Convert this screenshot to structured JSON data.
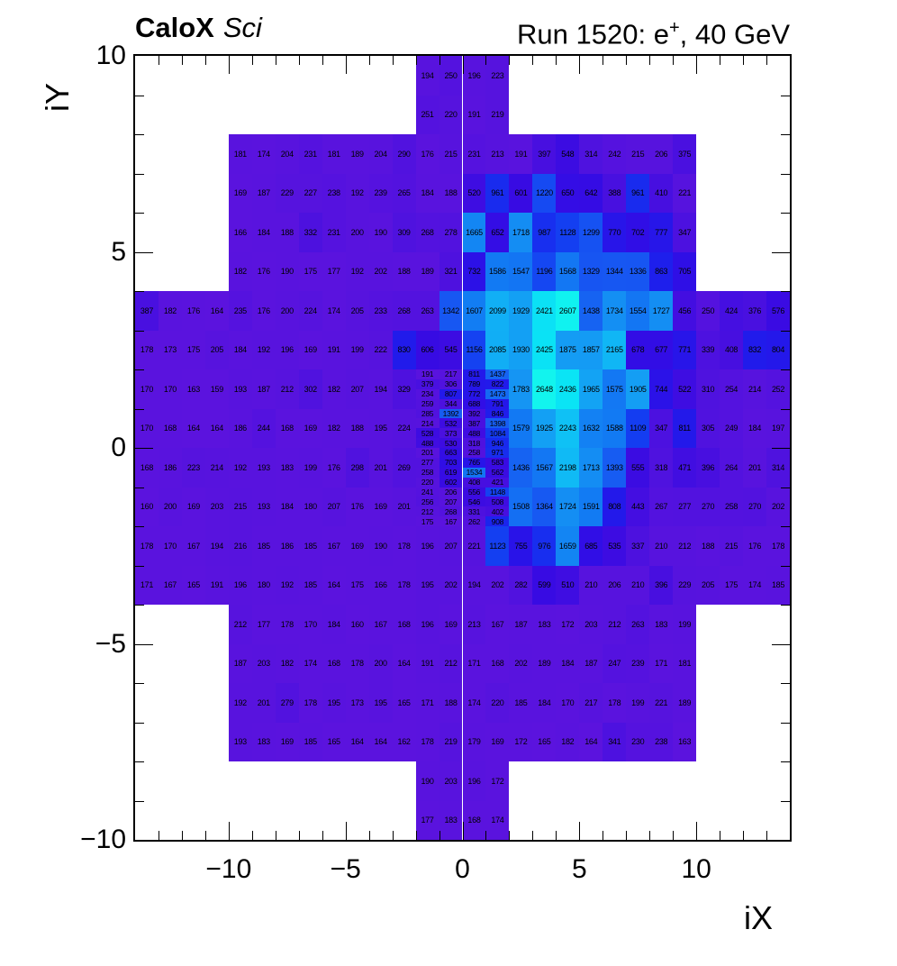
{
  "header": {
    "left_bold": "CaloX",
    "left_italic": "Sci",
    "run_prefix": "Run 1520: e",
    "run_sup": "+",
    "run_suffix": ", 40 GeV"
  },
  "axes": {
    "x_title": "iX",
    "y_title": "iY",
    "x_major": [
      {
        "v": -10,
        "label": "−10"
      },
      {
        "v": -5,
        "label": "−5"
      },
      {
        "v": 0,
        "label": "0"
      },
      {
        "v": 5,
        "label": "5"
      },
      {
        "v": 10,
        "label": "10"
      }
    ],
    "y_major": [
      {
        "v": 10,
        "label": "10"
      },
      {
        "v": 5,
        "label": "5"
      },
      {
        "v": 0,
        "label": "0"
      },
      {
        "v": -5,
        "label": "−5"
      },
      {
        "v": -10,
        "label": "−10"
      }
    ]
  },
  "chart_data": {
    "type": "heatmap",
    "title": "Run 1520: e+, 40 GeV",
    "subtitle": "CaloX Sci",
    "xlabel": "iX",
    "ylabel": "iY",
    "xlim": [
      -14,
      14
    ],
    "ylim": [
      -10,
      10
    ],
    "zmin": 159,
    "zmax": 2648,
    "grid": false,
    "legend": "none",
    "palette": [
      [
        0.0,
        "#5B13DE"
      ],
      [
        0.057,
        "#5012DF"
      ],
      [
        0.117,
        "#430EE1"
      ],
      [
        0.177,
        "#380BE3"
      ],
      [
        0.217,
        "#300EE6"
      ],
      [
        0.258,
        "#2418EA"
      ],
      [
        0.298,
        "#1B23ED"
      ],
      [
        0.338,
        "#1731EF"
      ],
      [
        0.378,
        "#143CF1"
      ],
      [
        0.438,
        "#164DF2"
      ],
      [
        0.499,
        "#175DF2"
      ],
      [
        0.539,
        "#146EF3"
      ],
      [
        0.579,
        "#127CF3"
      ],
      [
        0.619,
        "#148BF3"
      ],
      [
        0.659,
        "#1597F3"
      ],
      [
        0.699,
        "#149EF4"
      ],
      [
        0.74,
        "#12A6F4"
      ],
      [
        0.78,
        "#11AFF5"
      ],
      [
        0.82,
        "#10BAF5"
      ],
      [
        0.86,
        "#0DCBF5"
      ],
      [
        0.9,
        "#0BDEF5"
      ],
      [
        0.94,
        "#09EDF5"
      ],
      [
        1.0,
        "#12F4EE"
      ]
    ],
    "coarse_rows": [
      {
        "y": 9,
        "x0": -2,
        "values": [
          194,
          250,
          196,
          223
        ]
      },
      {
        "y": 8,
        "x0": -2,
        "values": [
          251,
          220,
          191,
          219
        ]
      },
      {
        "y": 7,
        "x0": -10,
        "values": [
          181,
          174,
          204,
          231,
          181,
          189,
          204,
          290,
          176,
          215,
          231,
          213,
          191,
          397,
          548,
          314,
          242,
          215,
          206,
          375
        ]
      },
      {
        "y": 6,
        "x0": -10,
        "values": [
          169,
          187,
          229,
          227,
          238,
          192,
          239,
          265,
          184,
          188,
          520,
          961,
          601,
          1220,
          650,
          642,
          388,
          961,
          410,
          221
        ]
      },
      {
        "y": 5,
        "x0": -10,
        "values": [
          166,
          184,
          188,
          332,
          231,
          200,
          190,
          309,
          268,
          278,
          1665,
          652,
          1718,
          987,
          1128,
          1299,
          770,
          702,
          777,
          347
        ]
      },
      {
        "y": 4,
        "x0": -10,
        "values": [
          182,
          176,
          190,
          175,
          177,
          192,
          202,
          188,
          189,
          321,
          732,
          1586,
          1547,
          1196,
          1568,
          1329,
          1344,
          1336,
          863,
          705
        ]
      },
      {
        "y": 3,
        "x0": -14,
        "values": [
          387,
          182,
          176,
          164,
          235,
          176,
          200,
          224,
          174,
          205,
          233,
          268,
          263,
          1342,
          1607,
          2099,
          1929,
          2421,
          2607,
          1438,
          1734,
          1554,
          1727,
          456,
          250,
          424,
          376,
          576
        ]
      },
      {
        "y": 2,
        "x0": -14,
        "values": [
          178,
          173,
          175,
          205,
          184,
          192,
          196,
          169,
          191,
          199,
          222,
          830,
          606,
          545,
          1156,
          2085,
          1930,
          2425,
          1875,
          1857,
          2165,
          678,
          677,
          771,
          339,
          408,
          832,
          804
        ]
      },
      {
        "y": 1,
        "x0": -14,
        "values": [
          170,
          170,
          163,
          159,
          193,
          187,
          212,
          302,
          182,
          207,
          194,
          329
        ]
      },
      {
        "y": 1,
        "x0": 2,
        "values": [
          1783,
          2648,
          2436,
          1965,
          1575,
          1905,
          744,
          522,
          310,
          254,
          214,
          252
        ]
      },
      {
        "y": 0,
        "x0": -14,
        "values": [
          170,
          168,
          164,
          164,
          186,
          244,
          168,
          169,
          182,
          188,
          195,
          224
        ]
      },
      {
        "y": 0,
        "x0": 2,
        "values": [
          1579,
          1925,
          2243,
          1632,
          1588,
          1109,
          347,
          811,
          305,
          249,
          184,
          197
        ]
      },
      {
        "y": -1,
        "x0": -14,
        "values": [
          168,
          186,
          223,
          214,
          192,
          193,
          183,
          199,
          176,
          298,
          201,
          269
        ]
      },
      {
        "y": -1,
        "x0": 2,
        "values": [
          1436,
          1567,
          2198,
          1713,
          1393,
          555,
          318,
          471,
          396,
          264,
          201,
          314
        ]
      },
      {
        "y": -2,
        "x0": -14,
        "values": [
          160,
          200,
          169,
          203,
          215,
          193,
          184,
          180,
          207,
          176,
          169,
          201
        ]
      },
      {
        "y": -2,
        "x0": 2,
        "values": [
          1508,
          1364,
          1724,
          1591,
          808,
          443,
          267,
          277,
          270,
          258,
          270,
          202
        ]
      },
      {
        "y": -3,
        "x0": -14,
        "values": [
          178,
          170,
          167,
          194,
          216,
          185,
          186,
          185,
          167,
          169,
          190,
          178,
          196,
          207,
          221,
          1123,
          755,
          976,
          1659,
          685,
          535,
          337,
          210,
          212,
          188,
          215,
          176,
          178
        ]
      },
      {
        "y": -4,
        "x0": -14,
        "values": [
          171,
          167,
          165,
          191,
          196,
          180,
          192,
          185,
          164,
          175,
          166,
          178,
          195,
          202,
          194,
          202,
          282,
          599,
          510,
          210,
          206,
          210,
          396,
          229,
          205,
          175,
          174,
          185
        ]
      },
      {
        "y": -5,
        "x0": -10,
        "values": [
          212,
          177,
          178,
          170,
          184,
          160,
          167,
          168,
          196,
          169,
          213,
          167,
          187,
          183,
          172,
          203,
          212,
          263,
          183,
          199
        ]
      },
      {
        "y": -6,
        "x0": -10,
        "values": [
          187,
          203,
          182,
          174,
          168,
          178,
          200,
          164,
          191,
          212,
          171,
          168,
          202,
          189,
          184,
          187,
          247,
          239,
          171,
          181
        ]
      },
      {
        "y": -7,
        "x0": -10,
        "values": [
          192,
          201,
          279,
          178,
          195,
          173,
          195,
          165,
          171,
          188,
          174,
          220,
          185,
          184,
          170,
          217,
          178,
          199,
          221,
          189
        ]
      },
      {
        "y": -8,
        "x0": -10,
        "values": [
          193,
          183,
          169,
          185,
          165,
          164,
          164,
          162,
          178,
          219,
          179,
          169,
          172,
          165,
          182,
          164,
          341,
          230,
          238,
          163
        ]
      },
      {
        "y": -9,
        "x0": -2,
        "values": [
          190,
          203,
          196,
          172
        ]
      },
      {
        "y": -10,
        "x0": -2,
        "values": [
          177,
          183,
          168,
          174
        ]
      }
    ],
    "fine_block": {
      "x0": -2,
      "y_top": 2,
      "cell_w": 1,
      "cell_h": 0.25,
      "rows": [
        [
          191,
          217,
          811,
          1437
        ],
        [
          379,
          306,
          789,
          822
        ],
        [
          234,
          807,
          772,
          1473
        ],
        [
          259,
          344,
          688,
          791
        ],
        [
          285,
          1392,
          392,
          846
        ],
        [
          214,
          532,
          387,
          1398
        ],
        [
          528,
          373,
          488,
          1084
        ],
        [
          488,
          530,
          318,
          946
        ],
        [
          201,
          663,
          258,
          971
        ],
        [
          277,
          703,
          765,
          583
        ],
        [
          258,
          619,
          1534,
          562
        ],
        [
          220,
          602,
          408,
          421
        ],
        [
          241,
          206,
          556,
          1148
        ],
        [
          256,
          207,
          546,
          508
        ],
        [
          212,
          268,
          331,
          402
        ],
        [
          175,
          167,
          262,
          908
        ]
      ]
    }
  }
}
